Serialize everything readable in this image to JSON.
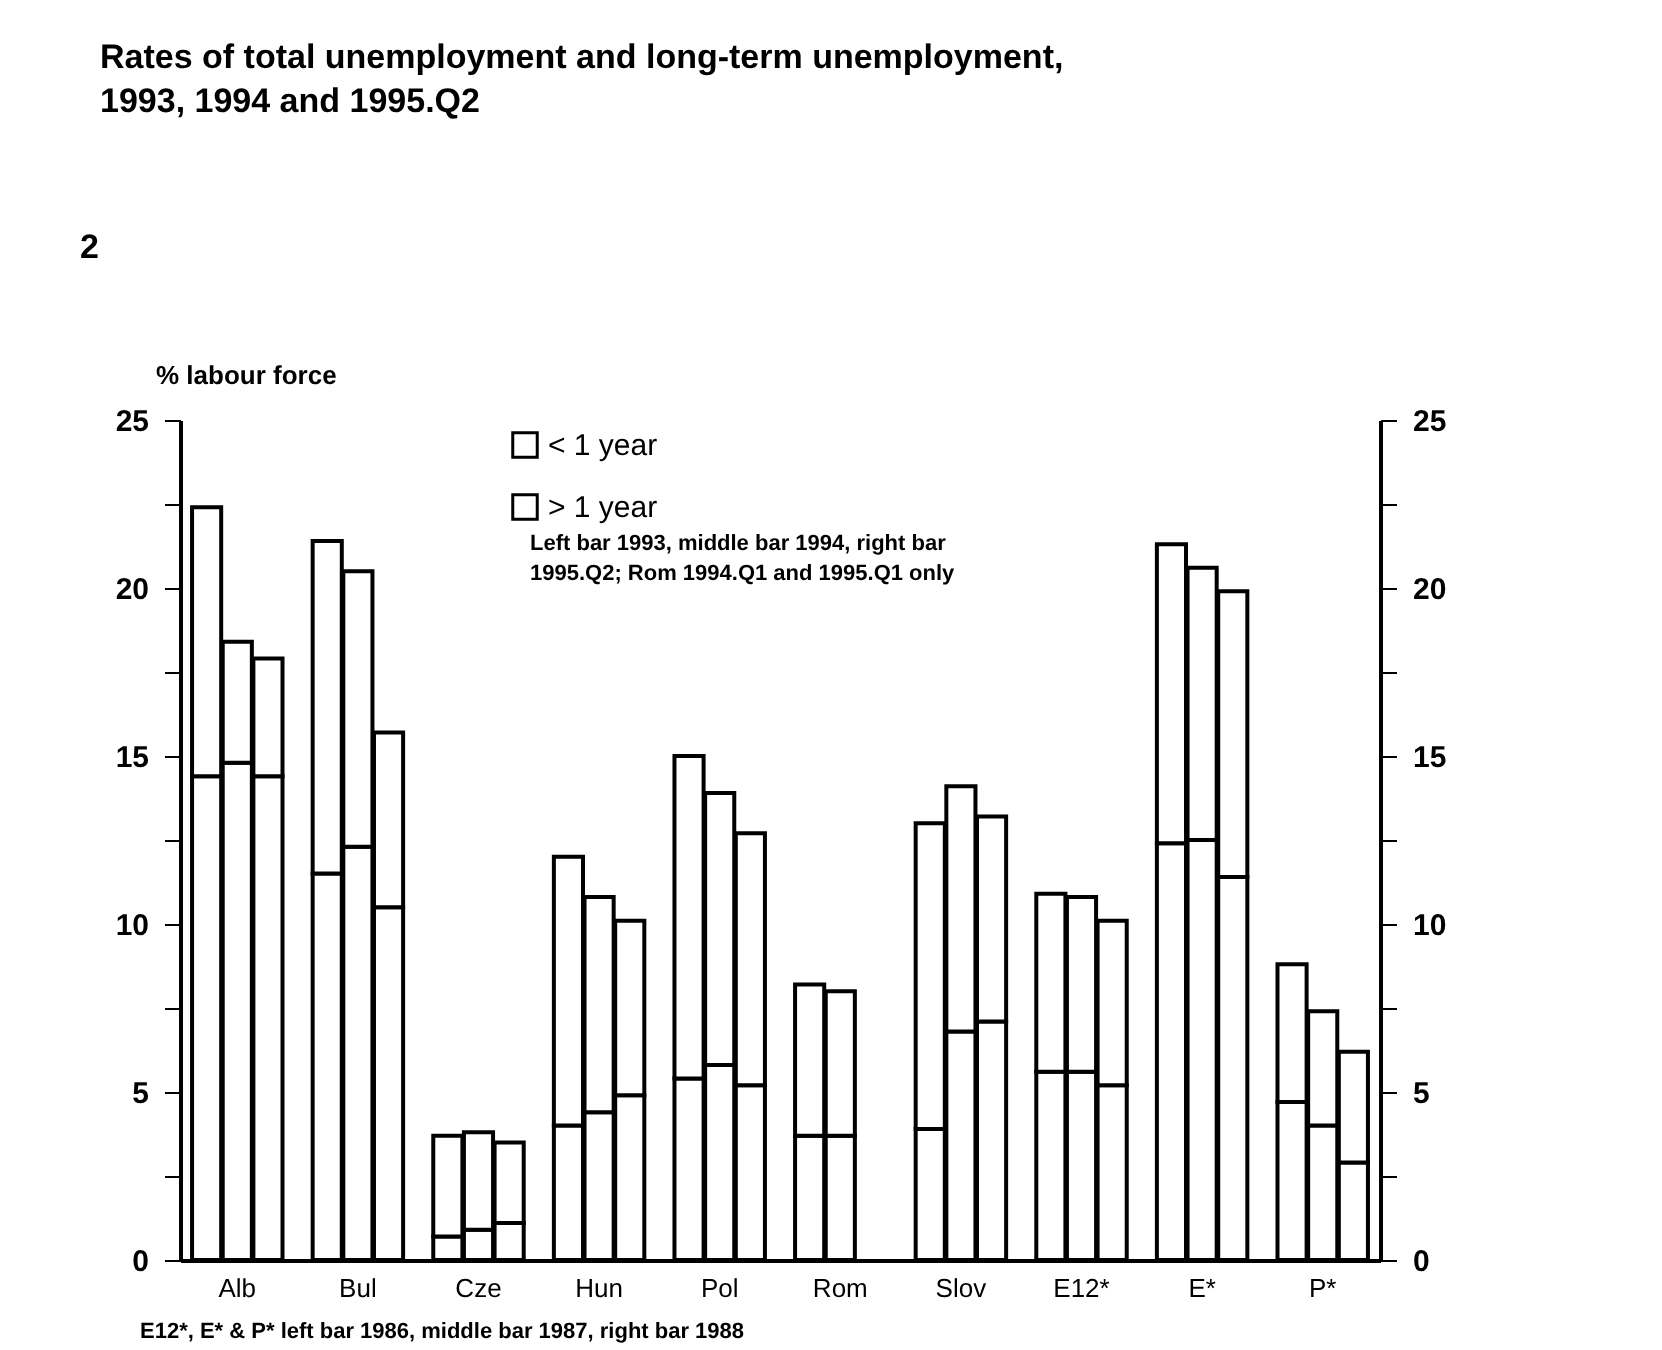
{
  "chart_data": {
    "type": "bar",
    "stacked": true,
    "title": "Rates of total unemployment and long-term unemployment, 1993, 1994 and 1995.Q2",
    "ylabel": "% labour force",
    "categories": [
      null,
      "Alb",
      null,
      null,
      "Bul",
      null,
      null,
      "Cze",
      null,
      null,
      "Hun",
      null,
      null,
      "Pol",
      null,
      null,
      "Rom",
      null,
      null,
      "Slov",
      null,
      null,
      "E12*",
      null,
      null,
      "E*",
      null,
      null,
      "P*",
      null
    ],
    "series": [
      {
        "name": "> 1 year",
        "color": "#ffffff",
        "values": [
          14.4,
          14.8,
          14.4,
          11.5,
          12.3,
          10.5,
          0.7,
          0.9,
          1.1,
          4.0,
          4.4,
          4.9,
          5.4,
          5.8,
          5.2,
          3.7,
          3.7,
          null,
          3.9,
          6.8,
          7.1,
          5.6,
          5.6,
          5.2,
          12.4,
          12.5,
          11.4,
          4.7,
          4.0,
          2.9
        ]
      },
      {
        "name": "< 1 year",
        "color": "#ffffff",
        "values": [
          8.0,
          3.6,
          3.5,
          9.9,
          8.2,
          5.2,
          3.0,
          2.9,
          2.4,
          8.0,
          6.4,
          5.2,
          9.6,
          8.1,
          7.5,
          4.5,
          4.3,
          null,
          9.1,
          7.3,
          6.1,
          5.3,
          5.2,
          4.9,
          8.9,
          8.1,
          8.5,
          4.1,
          3.4,
          3.3
        ]
      }
    ],
    "ylim": [
      0,
      25
    ],
    "yticks": [
      0,
      {
        "value": 2.5,
        "label": null
      },
      5,
      {
        "value": 7.5,
        "label": null
      },
      10,
      {
        "value": 12.5,
        "label": null
      },
      15,
      {
        "value": 17.5,
        "label": null
      },
      20,
      {
        "value": 22.5,
        "label": null
      },
      25
    ],
    "y2lim": [
      0,
      25
    ],
    "y2ticks": [
      0,
      {
        "value": 2.5,
        "label": null
      },
      5,
      {
        "value": 7.5,
        "label": null
      },
      10,
      {
        "value": 12.5,
        "label": null
      },
      15,
      {
        "value": 17.5,
        "label": null
      },
      20,
      {
        "value": 22.5,
        "label": null
      },
      25
    ],
    "grid": false,
    "legend": "top",
    "annotations": [
      "2",
      "Left bar 1993, middle bar 1994, right bar",
      "1995.Q2; Rom 1994.Q1 and 1995.Q1 only",
      "E12*, E* & P* left bar 1986, middle bar 1987, right bar 1988"
    ]
  }
}
